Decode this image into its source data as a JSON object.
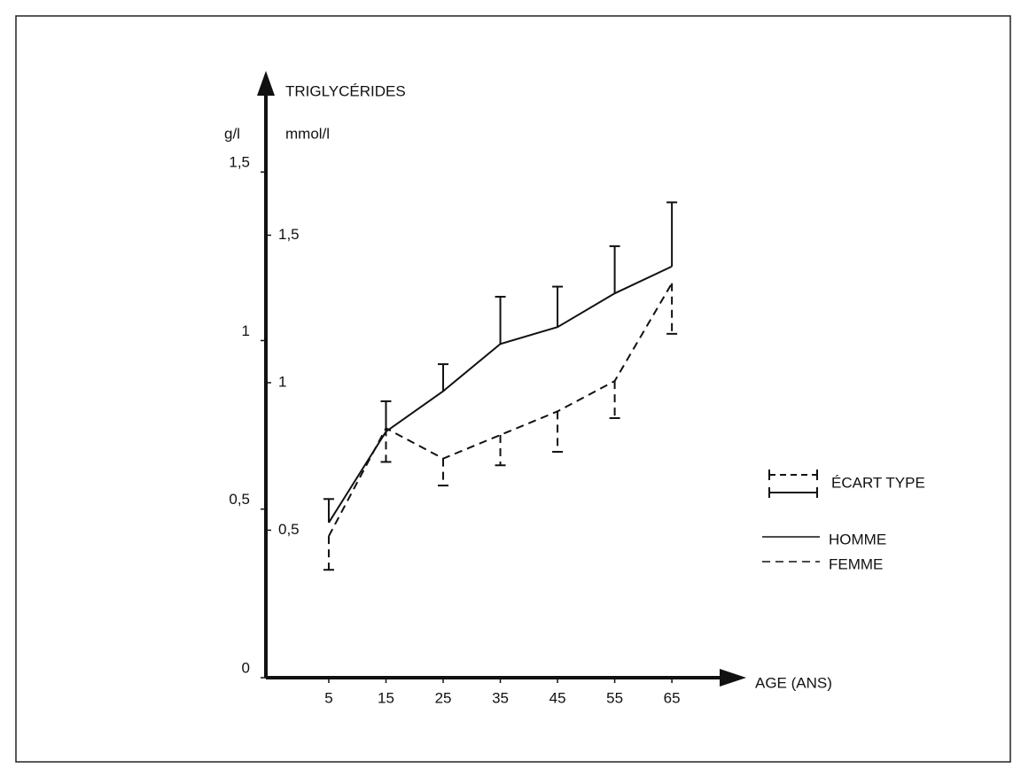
{
  "chart_data": {
    "type": "line",
    "title": "TRIGLYCÉRIDES",
    "ylabel": "g/l",
    "y2label": "mmol/l",
    "xlabel": "AGE (ANS)",
    "x": [
      5,
      15,
      25,
      35,
      45,
      55,
      65
    ],
    "xlim": [
      -6,
      78
    ],
    "xticks": [
      5,
      15,
      25,
      35,
      45,
      55,
      65
    ],
    "ylim": [
      0,
      1.8
    ],
    "yticks": [
      0,
      {
        "value": 0.5,
        "label": "0,5"
      },
      1,
      {
        "value": 1.5,
        "label": "1,5"
      }
    ],
    "y2lim": [
      0,
      2.057
    ],
    "y2ticks": [
      {
        "value": 0.5,
        "label": "0,5"
      },
      1,
      {
        "value": 1.5,
        "label": "1,5"
      }
    ],
    "error_legend": "ÉCART TYPE",
    "series": [
      {
        "name": "HOMME",
        "color": "#111111",
        "dashed": false,
        "error_direction": "up",
        "values": [
          0.46,
          0.73,
          0.85,
          0.99,
          1.04,
          1.14,
          1.22
        ],
        "errors": [
          0.07,
          0.09,
          0.08,
          0.14,
          0.12,
          0.14,
          0.19
        ]
      },
      {
        "name": "FEMME",
        "color": "#111111",
        "dashed": true,
        "error_direction": "down",
        "values": [
          0.42,
          0.74,
          0.65,
          0.72,
          0.79,
          0.88,
          1.17
        ],
        "errors": [
          0.1,
          0.1,
          0.08,
          0.09,
          0.12,
          0.11,
          0.15
        ]
      }
    ]
  }
}
